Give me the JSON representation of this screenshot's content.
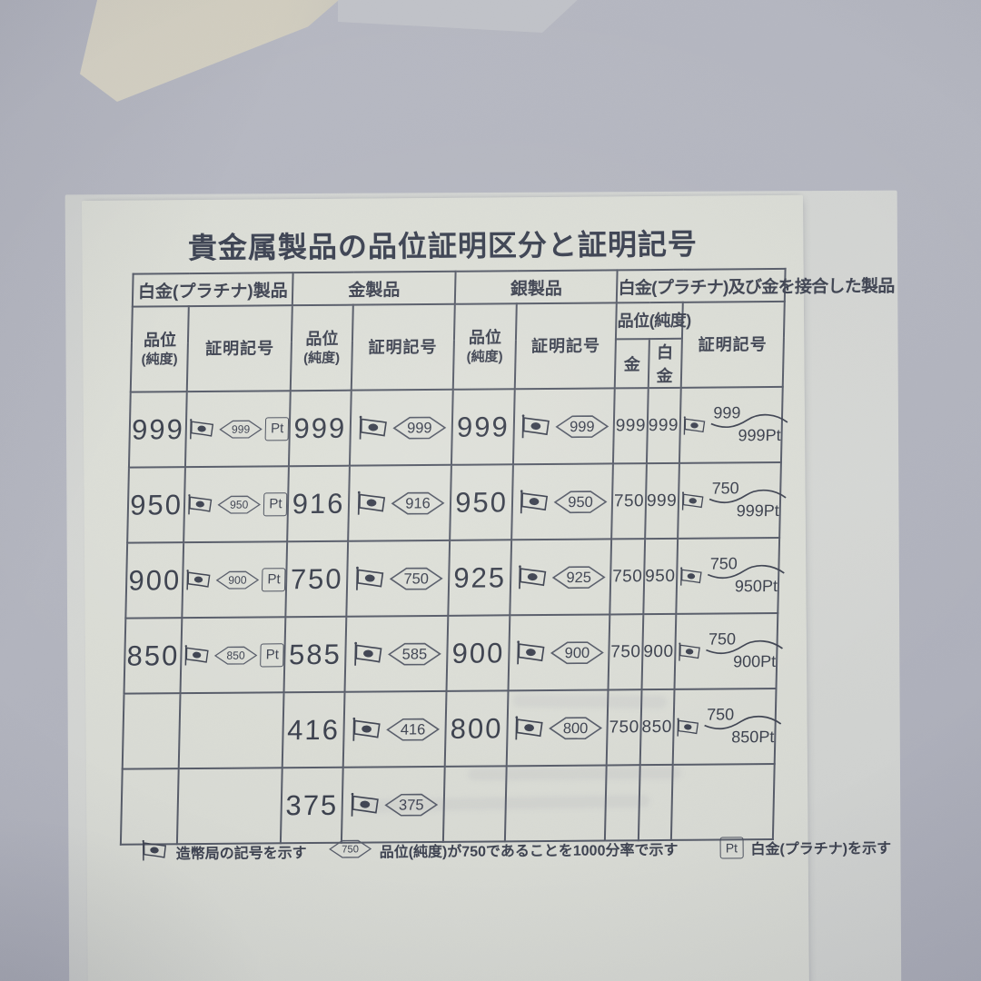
{
  "page": {
    "title": "貴金属製品の品位証明区分と証明記号"
  },
  "table": {
    "group_headers": [
      "白金(プラチナ)製品",
      "金製品",
      "銀製品",
      "白金(プラチナ)及び金を接合した製品"
    ],
    "col_headers": {
      "fineness_line1": "品位",
      "fineness_line2": "(純度)",
      "mark": "証明記号",
      "joint_fineness": "品位(純度)",
      "joint_gold": "金",
      "joint_platinum": "白金"
    },
    "rows": [
      {
        "pt_fineness": "999",
        "pt_mark": "999",
        "au_fineness": "999",
        "au_mark": "999",
        "ag_fineness": "999",
        "ag_mark": "999",
        "joint_gold": "999",
        "joint_platinum": "999",
        "joint_mark_top": "999",
        "joint_mark_bottom": "999Pt"
      },
      {
        "pt_fineness": "950",
        "pt_mark": "950",
        "au_fineness": "916",
        "au_mark": "916",
        "ag_fineness": "950",
        "ag_mark": "950",
        "joint_gold": "750",
        "joint_platinum": "999",
        "joint_mark_top": "750",
        "joint_mark_bottom": "999Pt"
      },
      {
        "pt_fineness": "900",
        "pt_mark": "900",
        "au_fineness": "750",
        "au_mark": "750",
        "ag_fineness": "925",
        "ag_mark": "925",
        "joint_gold": "750",
        "joint_platinum": "950",
        "joint_mark_top": "750",
        "joint_mark_bottom": "950Pt"
      },
      {
        "pt_fineness": "850",
        "pt_mark": "850",
        "au_fineness": "585",
        "au_mark": "585",
        "ag_fineness": "900",
        "ag_mark": "900",
        "joint_gold": "750",
        "joint_platinum": "900",
        "joint_mark_top": "750",
        "joint_mark_bottom": "900Pt"
      },
      {
        "pt_fineness": "",
        "pt_mark": "",
        "au_fineness": "416",
        "au_mark": "416",
        "ag_fineness": "800",
        "ag_mark": "800",
        "joint_gold": "750",
        "joint_platinum": "850",
        "joint_mark_top": "750",
        "joint_mark_bottom": "850Pt"
      },
      {
        "pt_fineness": "",
        "pt_mark": "",
        "au_fineness": "375",
        "au_mark": "375",
        "ag_fineness": "",
        "ag_mark": "",
        "joint_gold": "",
        "joint_platinum": "",
        "joint_mark_top": "",
        "joint_mark_bottom": ""
      }
    ],
    "symbols": {
      "pt_box": "Pt",
      "flag_icon_meaning": "mint-bureau-flag",
      "diamond_icon_meaning": "fineness-diamond"
    },
    "legend": [
      {
        "type": "flag",
        "label": "造幣局の記号を示す"
      },
      {
        "type": "diamond",
        "value": "750",
        "label": "品位(純度)が750であることを1000分率で示す"
      },
      {
        "type": "pt",
        "value": "Pt",
        "label": "白金(プラチナ)を示す"
      }
    ]
  },
  "colors": {
    "ink": "#3d4250",
    "line": "#565b68",
    "paper": "#dadcd5",
    "under_paper": "#d2d4d2",
    "surface": "#b3b5bf",
    "cream_paper": "#d5d1c3"
  }
}
